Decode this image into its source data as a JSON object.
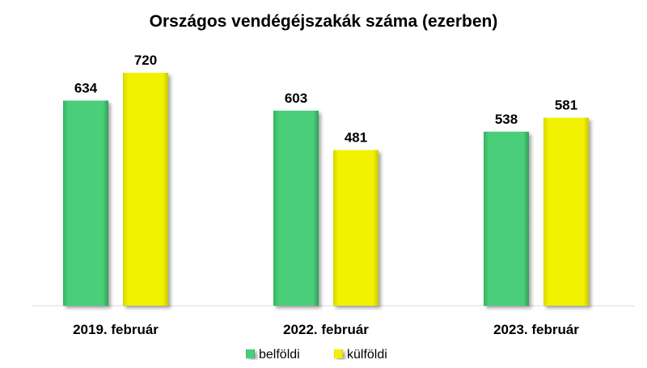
{
  "chart_data": {
    "type": "bar",
    "title": "Országos vendégéjszakák száma (ezerben)",
    "categories": [
      "2019. február",
      "2022. február",
      "2023. február"
    ],
    "series": [
      {
        "name": "belföldi",
        "values": [
          634,
          603,
          538
        ],
        "color": "#4cce7a"
      },
      {
        "name": "külföldi",
        "values": [
          720,
          481,
          581
        ],
        "color": "#f2f200"
      }
    ],
    "ylim": [
      0,
      800
    ],
    "grid": false,
    "legend": "bottom"
  }
}
